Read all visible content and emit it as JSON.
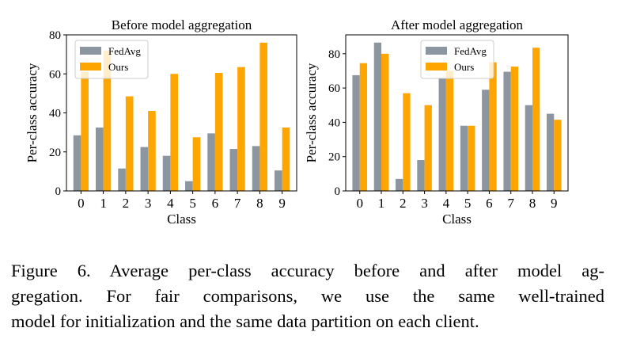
{
  "chart_data": [
    {
      "type": "bar",
      "title": "Before model aggregation",
      "xlabel": "Class",
      "ylabel": "Per-class accuracy",
      "categories": [
        "0",
        "1",
        "2",
        "3",
        "4",
        "5",
        "6",
        "7",
        "8",
        "9"
      ],
      "series": [
        {
          "name": "FedAvg",
          "color": "#8c96a0",
          "values": [
            28.5,
            32.5,
            11.5,
            22.5,
            18,
            5,
            29.5,
            21.5,
            23,
            10.5
          ]
        },
        {
          "name": "Ours",
          "color": "#ffa500",
          "values": [
            61,
            72,
            48.5,
            41,
            60,
            27.5,
            60.5,
            63.5,
            76,
            32.5
          ]
        }
      ],
      "ylim": [
        0,
        80
      ],
      "yticks": [
        0,
        20,
        40,
        60,
        80
      ],
      "legend": "top-left"
    },
    {
      "type": "bar",
      "title": "After model aggregation",
      "xlabel": "Class",
      "ylabel": "Per-class accuracy",
      "categories": [
        "0",
        "1",
        "2",
        "3",
        "4",
        "5",
        "6",
        "7",
        "8",
        "9"
      ],
      "series": [
        {
          "name": "FedAvg",
          "color": "#8c96a0",
          "values": [
            67.5,
            86.5,
            7,
            18,
            66,
            38,
            59,
            69.5,
            50,
            45
          ]
        },
        {
          "name": "Ours",
          "color": "#ffa500",
          "values": [
            74.5,
            80,
            57,
            50,
            70,
            38,
            75,
            72.5,
            83.5,
            41.5
          ]
        }
      ],
      "ylim": [
        0,
        91
      ],
      "yticks": [
        0,
        20,
        40,
        60,
        80
      ],
      "legend": "top-center"
    }
  ],
  "caption": {
    "lines": [
      "Figure 6.  Average per-class accuracy before and after model ag-",
      "gregation.  For fair comparisons, we use the same well-trained",
      "model for initialization and the same data partition on each client."
    ]
  }
}
